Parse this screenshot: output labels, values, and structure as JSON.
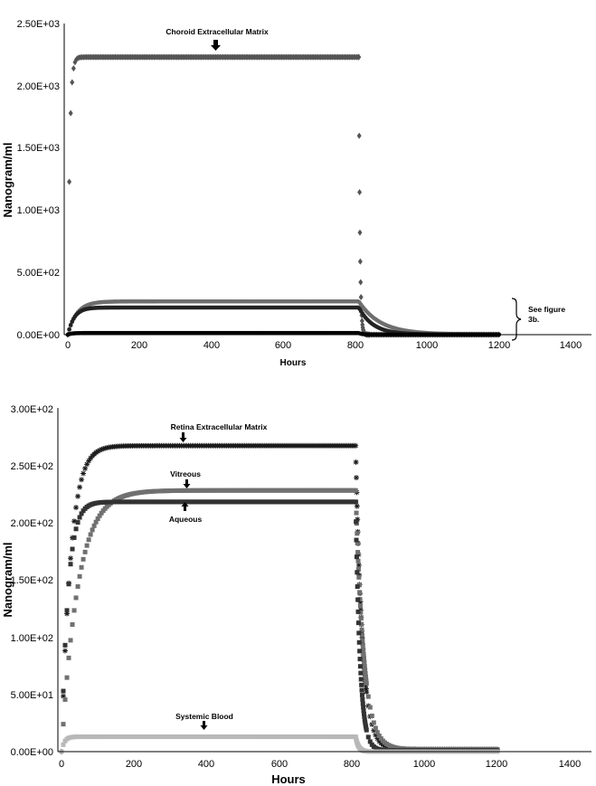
{
  "chart_data": [
    {
      "type": "scatter",
      "xlabel": "Hours",
      "ylabel": "Nanogram/ml",
      "xlim": [
        0,
        1400
      ],
      "ylim": [
        0,
        2500
      ],
      "x_ticks": [
        "0",
        "200",
        "400",
        "600",
        "800",
        "1000",
        "1200",
        "1400"
      ],
      "y_ticks": [
        "0.00E+00",
        "5.00E+02",
        "1.00E+03",
        "1.50E+03",
        "2.00E+03",
        "2.50E+03"
      ],
      "annotations": [
        "Choroid Extracellular Matrix",
        "See figure",
        "3b."
      ],
      "series": [
        {
          "name": "Choroid Extracellular Matrix",
          "color": "#555555",
          "marker": "diamond",
          "plateau": 2230,
          "peak_at": 5,
          "dose_end": 810,
          "decay_hours": 3,
          "tail": 0
        },
        {
          "name": "Retina Extracellular Matrix",
          "color": "#6e6e6e",
          "marker": "line",
          "plateau": 267,
          "peak_at": 25,
          "dose_end": 810,
          "decay_hours": 60,
          "tail": 2
        },
        {
          "name": "Aqueous",
          "color": "#222222",
          "marker": "line",
          "plateau": 218,
          "peak_at": 18,
          "dose_end": 810,
          "decay_hours": 40,
          "tail": 1
        },
        {
          "name": "Systemic Blood",
          "color": "#000000",
          "marker": "line",
          "plateau": 13,
          "peak_at": 10,
          "dose_end": 810,
          "decay_hours": 10,
          "tail": 0
        }
      ]
    },
    {
      "type": "scatter",
      "xlabel": "Hours",
      "ylabel": "Nanogram/ml",
      "xlim": [
        0,
        1400
      ],
      "ylim": [
        0,
        300
      ],
      "x_ticks": [
        "0",
        "200",
        "400",
        "600",
        "800",
        "1000",
        "1200",
        "1400"
      ],
      "y_ticks": [
        "0.00E+00",
        "5.00E+01",
        "1.00E+02",
        "1.50E+02",
        "2.00E+02",
        "2.50E+02",
        "3.00E+02"
      ],
      "annotations": [],
      "series": [
        {
          "name": "Retina Extracellular Matrix",
          "color": "#1a1a1a",
          "marker": "star",
          "plateau": 267,
          "peak_at": 25,
          "dose_end": 810,
          "decay_hours": 18,
          "tail": 2
        },
        {
          "name": "Vitreous",
          "color": "#707070",
          "marker": "square",
          "plateau": 228,
          "peak_at": 45,
          "dose_end": 810,
          "decay_hours": 22,
          "tail": 2
        },
        {
          "name": "Aqueous",
          "color": "#333333",
          "marker": "square",
          "plateau": 218,
          "peak_at": 18,
          "dose_end": 810,
          "decay_hours": 12,
          "tail": 1
        },
        {
          "name": "Systemic Blood",
          "color": "#b8b8b8",
          "marker": "square",
          "plateau": 13,
          "peak_at": 8,
          "dose_end": 810,
          "decay_hours": 8,
          "tail": 0
        }
      ]
    }
  ]
}
